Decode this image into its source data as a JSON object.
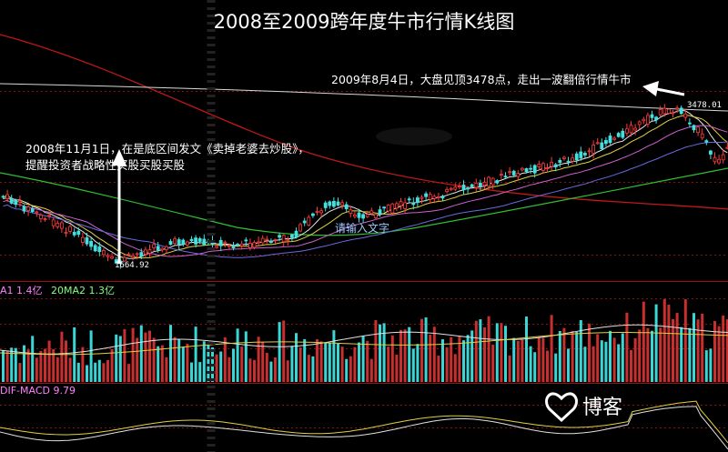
{
  "chart": {
    "title": "2008至2009跨年度牛市行情K线图",
    "annotation_top": "2009年8月4日，大盘见顶3478点，走出一波翻倍行情牛市",
    "annotation_left_line1": "2008年11月1日，在是底区间发文《卖掉老婆去炒股》，",
    "annotation_left_line2": "提醒投资者战略性买股买股买股",
    "high_label": "3478.01",
    "low_label": "1664.92",
    "watermark_text": "请输入文字",
    "volume_ma1_label": "A1 1.4亿",
    "volume_ma2_label": "20MA2 1.3亿",
    "macd_label": "DIF-MACD 9.79",
    "logo_text": "博客"
  },
  "colors": {
    "up": "#ff3b3b",
    "down": "#44e0e0",
    "ma_white": "#e8e8e8",
    "ma_yellow": "#e0d040",
    "ma_magenta": "#d060d0",
    "ma_green": "#30c030",
    "ma_darkred": "#c01818",
    "ma1_label": "#ff80ff",
    "ma2_label": "#80ff80",
    "macd_label": "#ff80ff",
    "grid_red": "#a01010"
  },
  "chart_data": {
    "type": "candlestick",
    "title": "2008至2009跨年度牛市行情K线图",
    "annotations": [
      {
        "text": "2009年8月4日，大盘见顶3478点，走出一波翻倍行情牛市",
        "value": 3478.01
      },
      {
        "text": "2008年11月1日，在是底区间发文《卖掉老婆去炒股》，提醒投资者战略性买股买股买股",
        "value": 1664.92
      }
    ],
    "price_markers": {
      "high": 3478.01,
      "low": 1664.92
    },
    "panels": [
      "price",
      "volume",
      "macd"
    ],
    "volume_ma": [
      {
        "name": "A1",
        "value": "1.4亿"
      },
      {
        "name": "20MA2",
        "value": "1.3亿"
      }
    ],
    "macd": {
      "name": "DIF-MACD",
      "value": 9.79
    }
  }
}
